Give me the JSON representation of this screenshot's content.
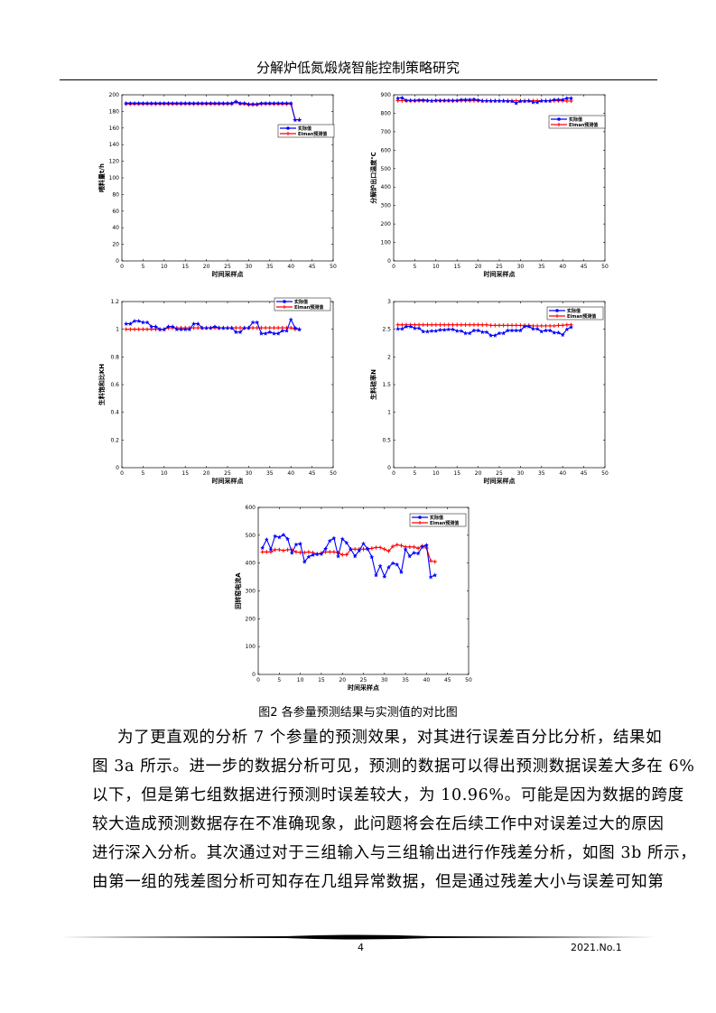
{
  "header": {
    "title": "分解炉低氮煅烧智能控制策略研究"
  },
  "figure_caption": "图2 各参量预测结果与实测值的对比图",
  "body_lines": [
    "为了更直观的分析 7 个参量的预测效果，对其进行误差百分比分析，结果如",
    "图 3a 所示。进一步的数据分析可见，预测的数据可以得出预测数据误差大多在 6%",
    "以下，但是第七组数据进行预测时误差较大，为 10.96%。可能是因为数据的跨度",
    "较大造成预测数据存在不准确现象，此问题将会在后续工作中对误差过大的原因",
    "进行深入分析。其次通过对于三组输入与三组输出进行作残差分析，如图 3b 所示，",
    "由第一组的残差图分析可知存在几组异常数据，但是通过残差大小与误差可知第"
  ],
  "footer": {
    "page": "4",
    "issue": "2021.No.1"
  },
  "colors": {
    "actual": "#0000ff",
    "predicted": "#ff0000"
  },
  "chart_data": [
    {
      "type": "line",
      "xlabel": "时间采样点",
      "ylabel": "喂料量t/h",
      "xlim": [
        0,
        50
      ],
      "ylim": [
        0,
        200
      ],
      "xticks": [
        0,
        5,
        10,
        15,
        20,
        25,
        30,
        35,
        40,
        45,
        50
      ],
      "yticks": [
        0,
        20,
        40,
        60,
        80,
        100,
        120,
        140,
        160,
        180,
        200
      ],
      "legend": "right",
      "grid": false,
      "x": [
        1,
        2,
        3,
        4,
        5,
        6,
        7,
        8,
        9,
        10,
        11,
        12,
        13,
        14,
        15,
        16,
        17,
        18,
        19,
        20,
        21,
        22,
        23,
        24,
        25,
        26,
        27,
        28,
        29,
        30,
        31,
        32,
        33,
        34,
        35,
        36,
        37,
        38,
        39,
        40,
        41,
        42
      ],
      "series": [
        {
          "name": "实际值",
          "marker": "star",
          "values": [
            190,
            190,
            190,
            190,
            190,
            190,
            190,
            190,
            190,
            190,
            190,
            190,
            190,
            190,
            190,
            190,
            190,
            190,
            190,
            190,
            190,
            190,
            190,
            190,
            190,
            190,
            192,
            190,
            190,
            189,
            189,
            189,
            190,
            190,
            190,
            190,
            190,
            190,
            190,
            190,
            170,
            170
          ]
        },
        {
          "name": "Elman预测值",
          "marker": "plus",
          "values": [
            189,
            189,
            189,
            189,
            189,
            189,
            189,
            189,
            189,
            189,
            189,
            189,
            189,
            189,
            189,
            189,
            189,
            189,
            189,
            189,
            189,
            189,
            189,
            189,
            189,
            189,
            191,
            189,
            189,
            188,
            188,
            188,
            189,
            189,
            189,
            189,
            189,
            189,
            189,
            189,
            170,
            170
          ]
        }
      ]
    },
    {
      "type": "line",
      "xlabel": "时间采样点",
      "ylabel": "分解炉出口温度℃",
      "xlim": [
        0,
        50
      ],
      "ylim": [
        0,
        900
      ],
      "xticks": [
        0,
        5,
        10,
        15,
        20,
        25,
        30,
        35,
        40,
        45,
        50
      ],
      "yticks": [
        0,
        100,
        200,
        300,
        400,
        500,
        600,
        700,
        800,
        900
      ],
      "legend": "right",
      "grid": false,
      "x": [
        1,
        2,
        3,
        4,
        5,
        6,
        7,
        8,
        9,
        10,
        11,
        12,
        13,
        14,
        15,
        16,
        17,
        18,
        19,
        20,
        21,
        22,
        23,
        24,
        25,
        26,
        27,
        28,
        29,
        30,
        31,
        32,
        33,
        34,
        35,
        36,
        37,
        38,
        39,
        40,
        41,
        42
      ],
      "series": [
        {
          "name": "实际值",
          "marker": "star",
          "values": [
            882,
            884,
            870,
            870,
            870,
            872,
            872,
            870,
            868,
            870,
            870,
            870,
            870,
            870,
            870,
            874,
            874,
            874,
            876,
            872,
            868,
            868,
            868,
            868,
            868,
            868,
            866,
            866,
            855,
            866,
            866,
            868,
            860,
            860,
            868,
            868,
            868,
            874,
            874,
            874,
            882,
            882
          ]
        },
        {
          "name": "Elman预测值",
          "marker": "plus",
          "values": [
            868,
            868,
            868,
            868,
            868,
            868,
            868,
            868,
            868,
            868,
            868,
            868,
            868,
            868,
            868,
            868,
            868,
            868,
            868,
            868,
            868,
            868,
            868,
            868,
            868,
            868,
            868,
            868,
            868,
            868,
            868,
            868,
            868,
            868,
            868,
            868,
            868,
            868,
            868,
            868,
            866,
            866
          ]
        }
      ]
    },
    {
      "type": "line",
      "xlabel": "时间采样点",
      "ylabel": "生料饱和比KH",
      "xlim": [
        0,
        50
      ],
      "ylim": [
        0,
        1.2
      ],
      "xticks": [
        0,
        5,
        10,
        15,
        20,
        25,
        30,
        35,
        40,
        45,
        50
      ],
      "yticks": [
        0,
        0.2,
        0.4,
        0.6,
        0.8,
        1,
        1.2
      ],
      "legend": "top-right",
      "grid": false,
      "x": [
        1,
        2,
        3,
        4,
        5,
        6,
        7,
        8,
        9,
        10,
        11,
        12,
        13,
        14,
        15,
        16,
        17,
        18,
        19,
        20,
        21,
        22,
        23,
        24,
        25,
        26,
        27,
        28,
        29,
        30,
        31,
        32,
        33,
        34,
        35,
        36,
        37,
        38,
        39,
        40,
        41,
        42
      ],
      "series": [
        {
          "name": "实际值",
          "marker": "star",
          "values": [
            1.04,
            1.04,
            1.06,
            1.06,
            1.05,
            1.05,
            1.02,
            1.02,
            1.0,
            1.0,
            1.02,
            1.02,
            1.0,
            1.0,
            1.0,
            1.0,
            1.04,
            1.04,
            1.01,
            1.01,
            1.01,
            1.02,
            1.01,
            1.01,
            1.01,
            1.01,
            0.98,
            0.98,
            1.01,
            1.01,
            1.05,
            1.05,
            0.97,
            0.97,
            0.98,
            0.97,
            0.97,
            0.99,
            0.99,
            1.07,
            1.01,
            1.0
          ]
        },
        {
          "name": "Elman预测值",
          "marker": "plus",
          "values": [
            1.0,
            1.0,
            1.0,
            1.0,
            1.0,
            1.0,
            1.0,
            1.0,
            1.0,
            1.0,
            1.01,
            1.01,
            1.01,
            1.01,
            1.01,
            1.01,
            1.01,
            1.01,
            1.01,
            1.01,
            1.01,
            1.01,
            1.01,
            1.01,
            1.01,
            1.01,
            1.01,
            1.01,
            1.01,
            1.01,
            1.01,
            1.01,
            1.01,
            1.01,
            1.01,
            1.01,
            1.01,
            1.01,
            1.01,
            1.01,
            1.0,
            1.0
          ]
        }
      ]
    },
    {
      "type": "line",
      "xlabel": "时间采样点",
      "ylabel": "生料硅率N",
      "xlim": [
        0,
        50
      ],
      "ylim": [
        0,
        3
      ],
      "xticks": [
        0,
        5,
        10,
        15,
        20,
        25,
        30,
        35,
        40,
        45,
        50
      ],
      "yticks": [
        0,
        0.5,
        1,
        1.5,
        2,
        2.5,
        3
      ],
      "legend": "top-right",
      "grid": false,
      "x": [
        1,
        2,
        3,
        4,
        5,
        6,
        7,
        8,
        9,
        10,
        11,
        12,
        13,
        14,
        15,
        16,
        17,
        18,
        19,
        20,
        21,
        22,
        23,
        24,
        25,
        26,
        27,
        28,
        29,
        30,
        31,
        32,
        33,
        34,
        35,
        36,
        37,
        38,
        39,
        40,
        41,
        42
      ],
      "series": [
        {
          "name": "实际值",
          "marker": "star",
          "values": [
            2.51,
            2.51,
            2.55,
            2.55,
            2.52,
            2.52,
            2.46,
            2.46,
            2.47,
            2.47,
            2.49,
            2.49,
            2.5,
            2.5,
            2.47,
            2.47,
            2.43,
            2.43,
            2.48,
            2.48,
            2.45,
            2.45,
            2.39,
            2.39,
            2.43,
            2.43,
            2.48,
            2.48,
            2.48,
            2.48,
            2.55,
            2.55,
            2.51,
            2.51,
            2.46,
            2.48,
            2.48,
            2.44,
            2.44,
            2.4,
            2.5,
            2.54
          ]
        },
        {
          "name": "Elman预测值",
          "marker": "plus",
          "values": [
            2.58,
            2.58,
            2.58,
            2.58,
            2.58,
            2.58,
            2.58,
            2.58,
            2.58,
            2.58,
            2.58,
            2.58,
            2.58,
            2.58,
            2.58,
            2.58,
            2.58,
            2.58,
            2.58,
            2.58,
            2.58,
            2.58,
            2.57,
            2.57,
            2.57,
            2.57,
            2.57,
            2.57,
            2.57,
            2.57,
            2.57,
            2.57,
            2.56,
            2.56,
            2.56,
            2.56,
            2.56,
            2.56,
            2.57,
            2.57,
            2.58,
            2.58
          ]
        }
      ]
    },
    {
      "type": "line",
      "xlabel": "时间采样点",
      "ylabel": "回转窑电流A",
      "xlim": [
        0,
        50
      ],
      "ylim": [
        0,
        600
      ],
      "xticks": [
        0,
        5,
        10,
        15,
        20,
        25,
        30,
        35,
        40,
        45,
        50
      ],
      "yticks": [
        0,
        100,
        200,
        300,
        400,
        500,
        600
      ],
      "legend": "top-right",
      "grid": false,
      "x": [
        1,
        2,
        3,
        4,
        5,
        6,
        7,
        8,
        9,
        10,
        11,
        12,
        13,
        14,
        15,
        16,
        17,
        18,
        19,
        20,
        21,
        22,
        23,
        24,
        25,
        26,
        27,
        28,
        29,
        30,
        31,
        32,
        33,
        34,
        35,
        36,
        37,
        38,
        39,
        40,
        41,
        42
      ],
      "series": [
        {
          "name": "实际值",
          "marker": "star",
          "values": [
            455,
            485,
            450,
            497,
            493,
            502,
            487,
            437,
            467,
            470,
            405,
            423,
            430,
            433,
            433,
            452,
            480,
            490,
            425,
            487,
            473,
            450,
            425,
            445,
            470,
            452,
            422,
            357,
            390,
            352,
            385,
            400,
            395,
            368,
            450,
            425,
            437,
            435,
            458,
            465,
            350,
            357
          ]
        },
        {
          "name": "Elman预测值",
          "marker": "plus",
          "values": [
            440,
            440,
            440,
            448,
            448,
            445,
            448,
            448,
            440,
            438,
            438,
            440,
            437,
            432,
            436,
            440,
            440,
            440,
            437,
            430,
            430,
            450,
            450,
            450,
            450,
            450,
            453,
            456,
            456,
            450,
            443,
            460,
            466,
            463,
            458,
            458,
            458,
            453,
            462,
            454,
            408,
            405
          ]
        }
      ]
    }
  ]
}
